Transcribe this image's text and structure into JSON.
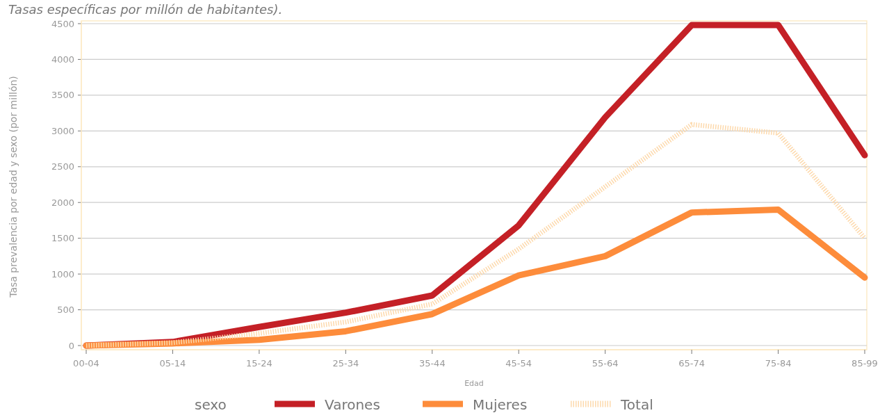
{
  "chart_data": {
    "type": "line",
    "title": "Tasas específicas por millón de habitantes).",
    "xlabel": "Edad",
    "ylabel": "Tasa prevalencia por edad y sexo (por millón)",
    "legend_title": "sexo",
    "legend": "bottom",
    "grid": "y",
    "marker": "none",
    "categories": [
      "00-04",
      "05-14",
      "15-24",
      "25-34",
      "35-44",
      "45-54",
      "55-64",
      "65-74",
      "75-84",
      "85-99"
    ],
    "ylim": [
      0,
      4500
    ],
    "yticks": [
      0,
      500,
      1000,
      1500,
      2000,
      2500,
      3000,
      3500,
      4000,
      4500
    ],
    "series": [
      {
        "name": "Varones",
        "color": "#c42026",
        "line_style": "solid",
        "values": [
          0,
          50,
          260,
          460,
          700,
          1680,
          3190,
          4480,
          4480,
          2660
        ]
      },
      {
        "name": "Mujeres",
        "color": "#fd8c3b",
        "line_style": "solid",
        "values": [
          0,
          30,
          80,
          200,
          440,
          980,
          1250,
          1860,
          1900,
          950
        ]
      },
      {
        "name": "Total",
        "color": "#fdd9ac",
        "line_style": "dotted",
        "values": [
          0,
          40,
          170,
          330,
          580,
          1350,
          2220,
          3090,
          2970,
          1500
        ]
      }
    ]
  }
}
